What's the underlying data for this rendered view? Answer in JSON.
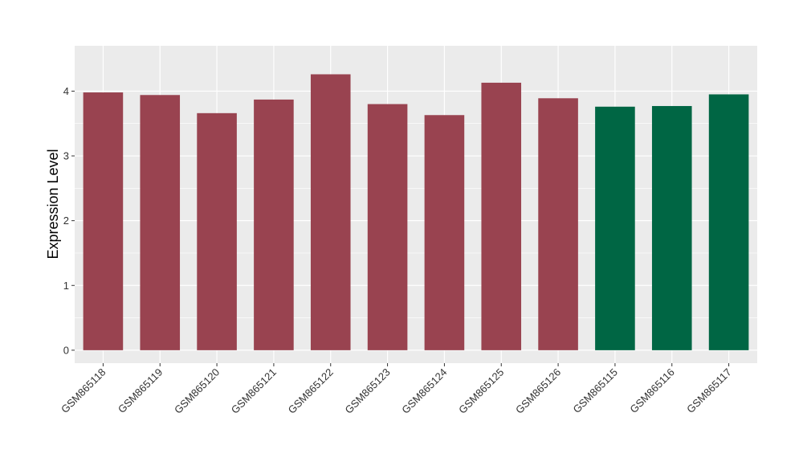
{
  "chart_data": {
    "type": "bar",
    "title": "",
    "xlabel": "",
    "ylabel": "Expression Level",
    "ylim": [
      -0.2,
      4.7
    ],
    "yticks": [
      0,
      1,
      2,
      3,
      4
    ],
    "grid": true,
    "legend": "none",
    "categories": [
      "GSM865118",
      "GSM865119",
      "GSM865120",
      "GSM865121",
      "GSM865122",
      "GSM865123",
      "GSM865124",
      "GSM865125",
      "GSM865126",
      "GSM865115",
      "GSM865116",
      "GSM865117"
    ],
    "values": [
      3.98,
      3.94,
      3.66,
      3.87,
      4.26,
      3.8,
      3.63,
      4.13,
      3.89,
      3.76,
      3.77,
      3.95
    ],
    "groups": [
      "a",
      "a",
      "a",
      "a",
      "a",
      "a",
      "a",
      "a",
      "a",
      "b",
      "b",
      "b"
    ],
    "colors": {
      "a": "#994350",
      "b": "#006644"
    },
    "panel_background": "#ebebeb",
    "grid_color": "#ffffff"
  }
}
